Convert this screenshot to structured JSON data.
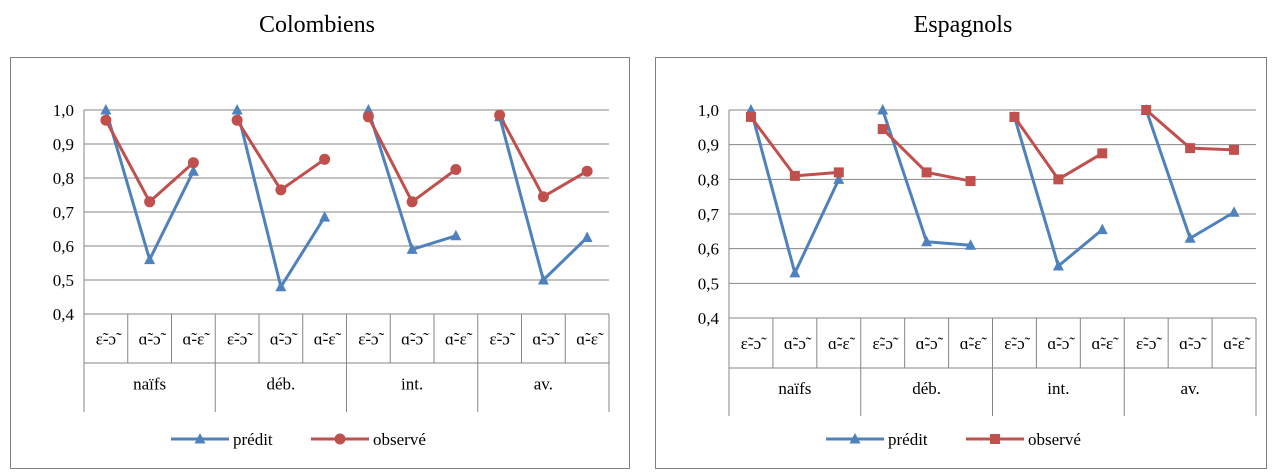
{
  "chart_data": [
    {
      "type": "line",
      "title": "Colombiens",
      "ylim": [
        0.4,
        1.0
      ],
      "y_ticks": [
        "1,0",
        "0,9",
        "0,8",
        "0,7",
        "0,6",
        "0,5",
        "0,4"
      ],
      "groups": [
        "naïfs",
        "déb.",
        "int.",
        "av."
      ],
      "pairs": [
        "ɛ̃-ɔ̃",
        "ɑ̃-ɔ̃",
        "ɑ̃-ɛ̃"
      ],
      "grid": true,
      "legend": "bottom",
      "series": [
        {
          "name": "prédit",
          "marker": "triangle",
          "color": "#4F81BD",
          "values": [
            [
              1.0,
              0.56,
              0.82
            ],
            [
              1.0,
              0.48,
              0.685
            ],
            [
              1.0,
              0.59,
              0.63
            ],
            [
              0.98,
              0.5,
              0.625
            ]
          ]
        },
        {
          "name": "observé",
          "marker": "circle",
          "color": "#C0504D",
          "values": [
            [
              0.97,
              0.73,
              0.845
            ],
            [
              0.97,
              0.765,
              0.855
            ],
            [
              0.98,
              0.73,
              0.825
            ],
            [
              0.985,
              0.745,
              0.82
            ]
          ]
        }
      ]
    },
    {
      "type": "line",
      "title": "Espagnols",
      "ylim": [
        0.4,
        1.0
      ],
      "y_ticks": [
        "1,0",
        "0,9",
        "0,8",
        "0,7",
        "0,6",
        "0,5",
        "0,4"
      ],
      "groups": [
        "naïfs",
        "déb.",
        "int.",
        "av."
      ],
      "pairs": [
        "ɛ̃-ɔ̃",
        "ɑ̃-ɔ̃",
        "ɑ̃-ɛ̃"
      ],
      "grid": true,
      "legend": "bottom",
      "series": [
        {
          "name": "prédit",
          "marker": "triangle",
          "color": "#4F81BD",
          "values": [
            [
              1.0,
              0.53,
              0.8
            ],
            [
              1.0,
              0.62,
              0.61
            ],
            [
              0.98,
              0.55,
              0.655
            ],
            [
              1.0,
              0.63,
              0.705
            ]
          ]
        },
        {
          "name": "observé",
          "marker": "square",
          "color": "#C0504D",
          "values": [
            [
              0.98,
              0.81,
              0.82
            ],
            [
              0.945,
              0.82,
              0.795
            ],
            [
              0.98,
              0.8,
              0.875
            ],
            [
              1.0,
              0.89,
              0.885
            ]
          ]
        }
      ]
    }
  ]
}
